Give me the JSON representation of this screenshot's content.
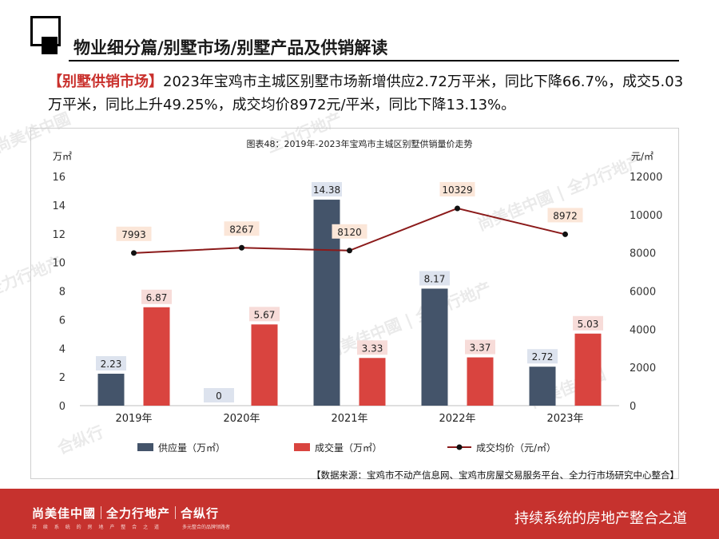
{
  "header": {
    "title": "物业细分篇/别墅市场/别墅产品及供销解读"
  },
  "summary": {
    "tag": "【别墅供销市场】",
    "text": "2023年宝鸡市主城区别墅市场新增供应2.72万平米，同比下降66.7%，成交5.03万平米，同比上升49.25%，成交均价8972元/平米，同比下降13.13%。"
  },
  "watermarks": [
    "尚美佳中國",
    "全力行地产",
    "合纵行",
    "尚美佳中國 | 全力行地产",
    "合纵行"
  ],
  "chart_data": {
    "type": "bar",
    "title": "图表48：2019年-2023年宝鸡市主城区别墅供销量价走势",
    "categories": [
      "2019年",
      "2020年",
      "2021年",
      "2022年",
      "2023年"
    ],
    "ylabel_left": "万㎡",
    "ylabel_right": "元/㎡",
    "ylim_left": [
      0,
      16
    ],
    "ylim_right": [
      0,
      12000
    ],
    "yticks_left": [
      0,
      2,
      4,
      6,
      8,
      10,
      12,
      14,
      16
    ],
    "yticks_right": [
      0,
      2000,
      4000,
      6000,
      8000,
      10000,
      12000
    ],
    "grid": false,
    "legend_position": "bottom",
    "series": [
      {
        "name": "供应量（万㎡）",
        "type": "bar",
        "axis": "left",
        "color": "#44546a",
        "values": [
          2.23,
          0,
          14.38,
          8.17,
          2.72
        ],
        "labels": [
          "2.23",
          "0",
          "14.38",
          "8.17",
          "2.72"
        ]
      },
      {
        "name": "成交量（万㎡）",
        "type": "bar",
        "axis": "left",
        "color": "#d9443f",
        "values": [
          6.87,
          5.67,
          3.33,
          3.37,
          5.03
        ],
        "labels": [
          "6.87",
          "5.67",
          "3.33",
          "3.37",
          "5.03"
        ]
      },
      {
        "name": "成交均价（元/㎡）",
        "type": "line",
        "axis": "right",
        "color": "#8b1a1a",
        "values": [
          7993,
          8267,
          8120,
          10329,
          8972
        ],
        "labels": [
          "7993",
          "8267",
          "8120",
          "10329",
          "8972"
        ]
      }
    ]
  },
  "source": "【数据来源：宝鸡市不动产信息网、宝鸡市房屋交易服务平台、全力行市场研究中心整合】",
  "footer": {
    "brand1": "尚美佳中國",
    "brand2": "全力行地产",
    "brand3": "合纵行",
    "sub1": "持 续 系 统 的 房 地 产 整 合 之 道",
    "sub2": "多元整合的品牌领路者",
    "slogan": "持续系统的房地产整合之道",
    "bg_color": "#c6322e"
  }
}
